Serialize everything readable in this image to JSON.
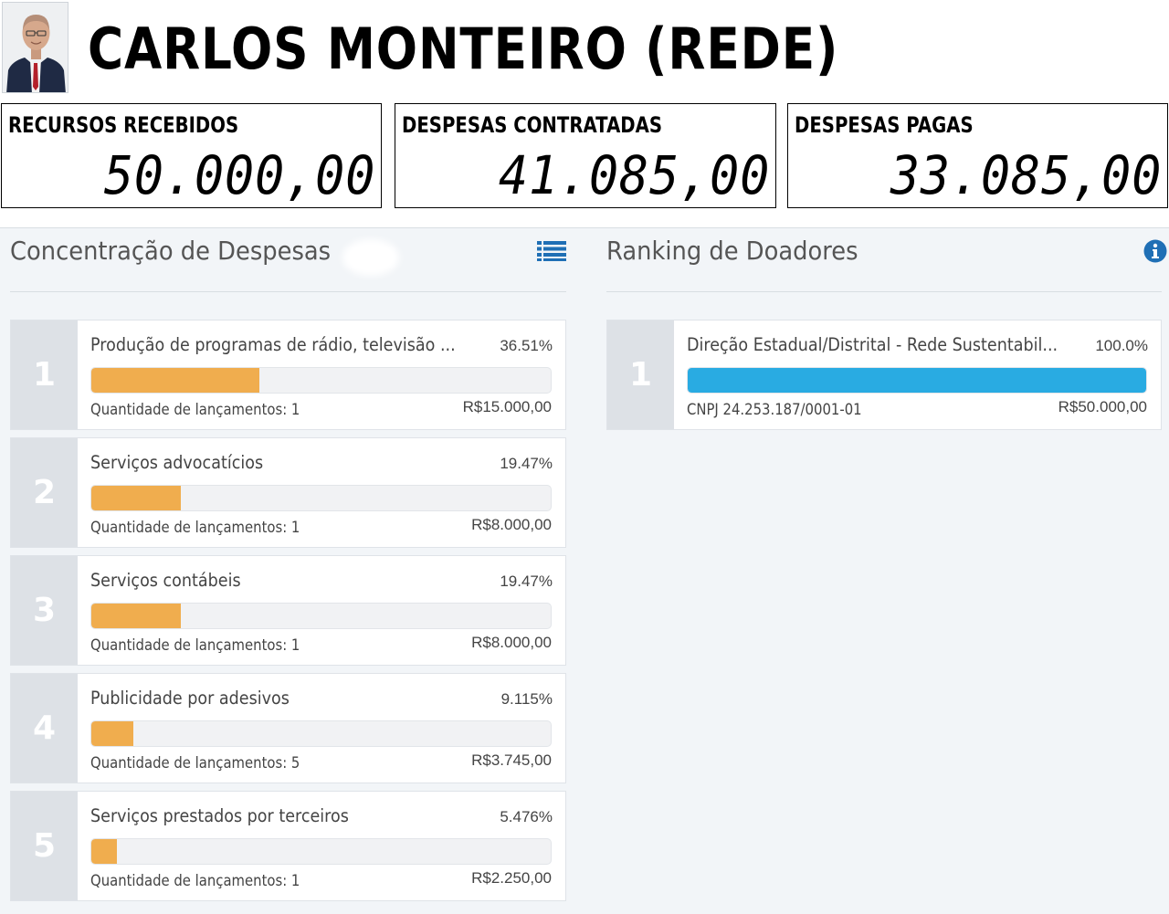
{
  "header": {
    "candidate_name": "CARLOS MONTEIRO (REDE)"
  },
  "summary": [
    {
      "label": "RECURSOS RECEBIDOS",
      "value": "50.000,00"
    },
    {
      "label": "DESPESAS CONTRATADAS",
      "value": "41.085,00"
    },
    {
      "label": "DESPESAS PAGAS",
      "value": "33.085,00"
    }
  ],
  "expenses": {
    "title": "Concentração de Despesas",
    "icon": "list-icon",
    "items": [
      {
        "rank": "1",
        "label": "Produção de programas de rádio, televisão ...",
        "percent": "36.51%",
        "fraction": 0.3651,
        "count_text": "Quantidade de lançamentos: 1",
        "amount": "R$15.000,00"
      },
      {
        "rank": "2",
        "label": "Serviços advocatícios",
        "percent": "19.47%",
        "fraction": 0.1947,
        "count_text": "Quantidade de lançamentos: 1",
        "amount": "R$8.000,00"
      },
      {
        "rank": "3",
        "label": "Serviços contábeis",
        "percent": "19.47%",
        "fraction": 0.1947,
        "count_text": "Quantidade de lançamentos: 1",
        "amount": "R$8.000,00"
      },
      {
        "rank": "4",
        "label": "Publicidade por adesivos",
        "percent": "9.115%",
        "fraction": 0.09115,
        "count_text": "Quantidade de lançamentos: 5",
        "amount": "R$3.745,00"
      },
      {
        "rank": "5",
        "label": "Serviços prestados por terceiros",
        "percent": "5.476%",
        "fraction": 0.05476,
        "count_text": "Quantidade de lançamentos: 1",
        "amount": "R$2.250,00"
      }
    ]
  },
  "donors": {
    "title": "Ranking de Doadores",
    "icon": "info-icon",
    "items": [
      {
        "rank": "1",
        "label": "Direção Estadual/Distrital - Rede Sustentabil...",
        "percent": "100.0%",
        "fraction": 1.0,
        "cnpj": "CNPJ 24.253.187/0001-01",
        "amount": "R$50.000,00"
      }
    ]
  },
  "colors": {
    "expense_bar": "#f0ad4e",
    "donor_bar": "#29abe2",
    "rank_badge": "#dde1e6",
    "panel_background": "#f2f5f8",
    "icon_blue": "#1f6fb5"
  }
}
